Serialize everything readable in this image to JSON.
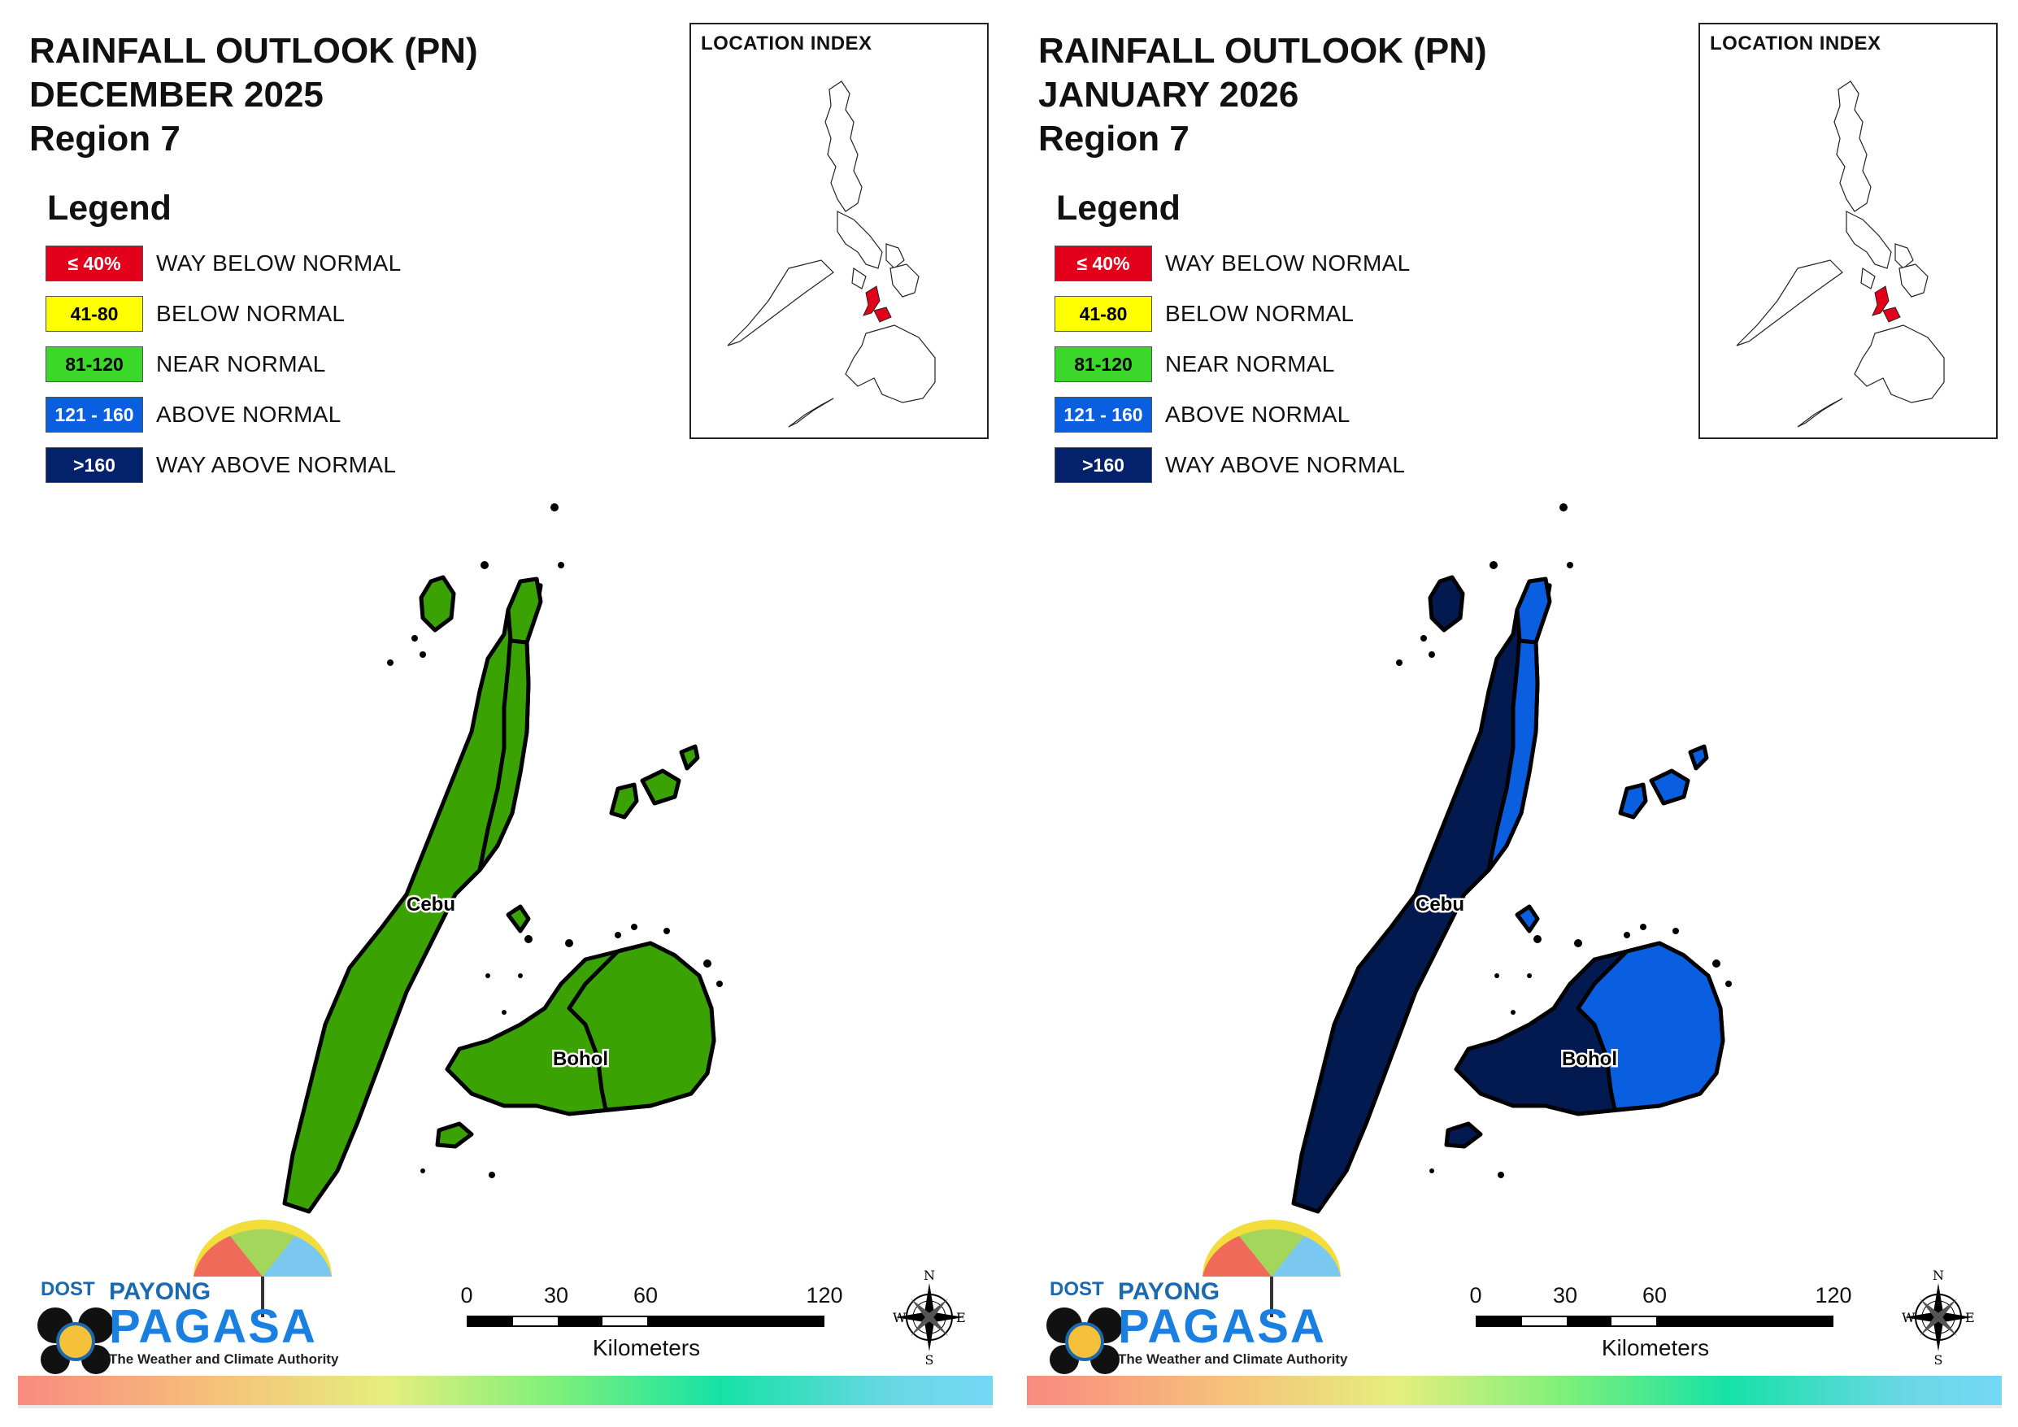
{
  "panels": [
    {
      "title_line1": "RAINFALL OUTLOOK (PN)",
      "title_line2": "DECEMBER 2025",
      "title_line3": "Region 7",
      "legend_title": "Legend",
      "legend": [
        {
          "code": "≤ 40%",
          "label": "WAY BELOW NORMAL",
          "color": "#e3001b",
          "text_color": "#ffffff"
        },
        {
          "code": "41-80",
          "label": "BELOW NORMAL",
          "color": "#ffff00",
          "text_color": "#000000"
        },
        {
          "code": "81-120",
          "label": "NEAR NORMAL",
          "color": "#3bd82a",
          "text_color": "#000000"
        },
        {
          "code": "121 - 160",
          "label": "ABOVE NORMAL",
          "color": "#0a5ee0",
          "text_color": "#ffffff"
        },
        {
          "code": ">160",
          "label": "WAY ABOVE NORMAL",
          "color": "#04226b",
          "text_color": "#ffffff"
        }
      ],
      "location_index_title": "LOCATION INDEX",
      "province_labels": [
        "Cebu",
        "Bohol"
      ],
      "map_colors": {
        "cebu_west": "#3aa203",
        "cebu_east": "#3aa203",
        "bohol_west": "#3aa203",
        "bohol_east": "#3aa203",
        "islands": "#3aa203"
      },
      "scale_ticks": [
        "0",
        "30",
        "60",
        "120"
      ],
      "scale_unit": "Kilometers",
      "compass": {
        "n": "N",
        "s": "S",
        "e": "E",
        "w": "W"
      },
      "logo": {
        "dost": "DOST",
        "payong": "PAYONG",
        "pagasa": "PAGASA",
        "tagline": "The Weather and Climate Authority"
      }
    },
    {
      "title_line1": "RAINFALL OUTLOOK (PN)",
      "title_line2": "JANUARY 2026",
      "title_line3": "Region 7",
      "legend_title": "Legend",
      "legend": [
        {
          "code": "≤ 40%",
          "label": "WAY BELOW NORMAL",
          "color": "#e3001b",
          "text_color": "#ffffff"
        },
        {
          "code": "41-80",
          "label": "BELOW NORMAL",
          "color": "#ffff00",
          "text_color": "#000000"
        },
        {
          "code": "81-120",
          "label": "NEAR NORMAL",
          "color": "#3bd82a",
          "text_color": "#000000"
        },
        {
          "code": "121 - 160",
          "label": "ABOVE NORMAL",
          "color": "#0a5ee0",
          "text_color": "#ffffff"
        },
        {
          "code": ">160",
          "label": "WAY ABOVE NORMAL",
          "color": "#04226b",
          "text_color": "#ffffff"
        }
      ],
      "location_index_title": "LOCATION INDEX",
      "province_labels": [
        "Cebu",
        "Bohol"
      ],
      "map_colors": {
        "cebu_west": "#021a4f",
        "cebu_east": "#0a5ee0",
        "bohol_west": "#021a4f",
        "bohol_east": "#0a5ee0",
        "islands": "#0a5ee0"
      },
      "scale_ticks": [
        "0",
        "30",
        "60",
        "120"
      ],
      "scale_unit": "Kilometers",
      "compass": {
        "n": "N",
        "s": "S",
        "e": "E",
        "w": "W"
      },
      "logo": {
        "dost": "DOST",
        "payong": "PAYONG",
        "pagasa": "PAGASA",
        "tagline": "The Weather and Climate Authority"
      }
    }
  ]
}
